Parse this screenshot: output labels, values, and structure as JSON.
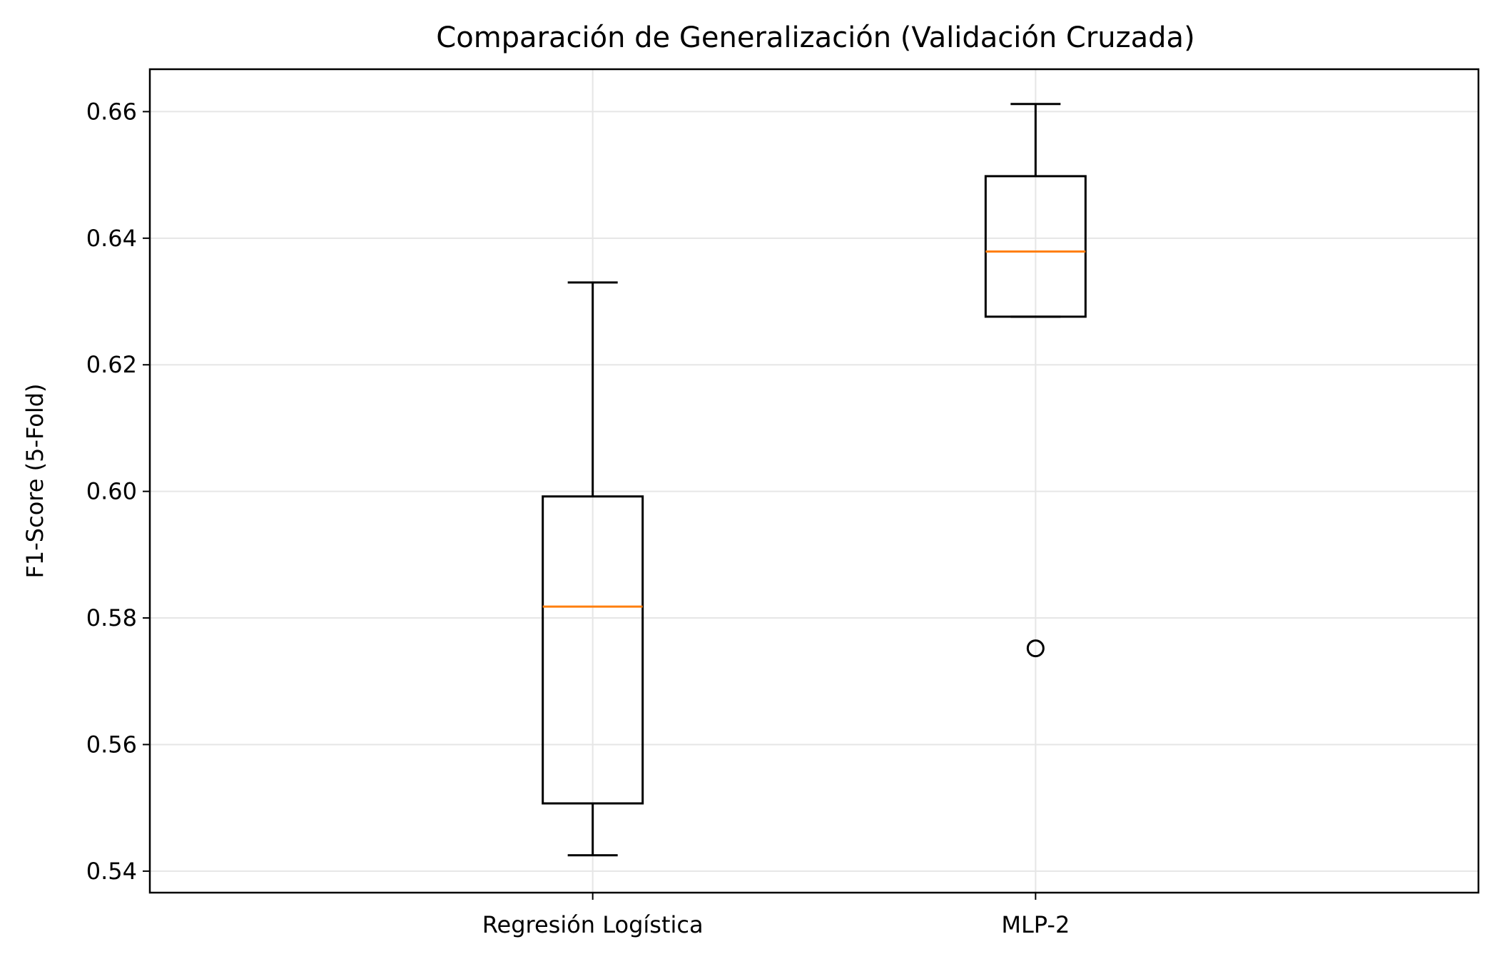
{
  "chart_data": {
    "type": "boxplot",
    "title": "Comparación de Generalización (Validación Cruzada)",
    "xlabel": "",
    "ylabel": "F1-Score (5-Fold)",
    "ylim": [
      0.5366,
      0.6667
    ],
    "yticks": [
      0.54,
      0.56,
      0.58,
      0.6,
      0.62,
      0.64,
      0.66
    ],
    "ytick_labels": [
      "0.54",
      "0.56",
      "0.58",
      "0.60",
      "0.62",
      "0.64",
      "0.66"
    ],
    "grid": true,
    "categories": [
      "Regresión Logística",
      "MLP-2"
    ],
    "boxes": [
      {
        "label": "Regresión Logística",
        "whisker_low": 0.5425,
        "q1": 0.5507,
        "median": 0.5818,
        "q3": 0.5992,
        "whisker_high": 0.633,
        "outliers": []
      },
      {
        "label": "MLP-2",
        "whisker_low": 0.6276,
        "q1": 0.6276,
        "median": 0.6379,
        "q3": 0.6498,
        "whisker_high": 0.6612,
        "outliers": [
          0.5752
        ]
      }
    ],
    "colors": {
      "box": "#000000",
      "median": "#ff7f0e",
      "grid": "#e6e6e6"
    }
  }
}
